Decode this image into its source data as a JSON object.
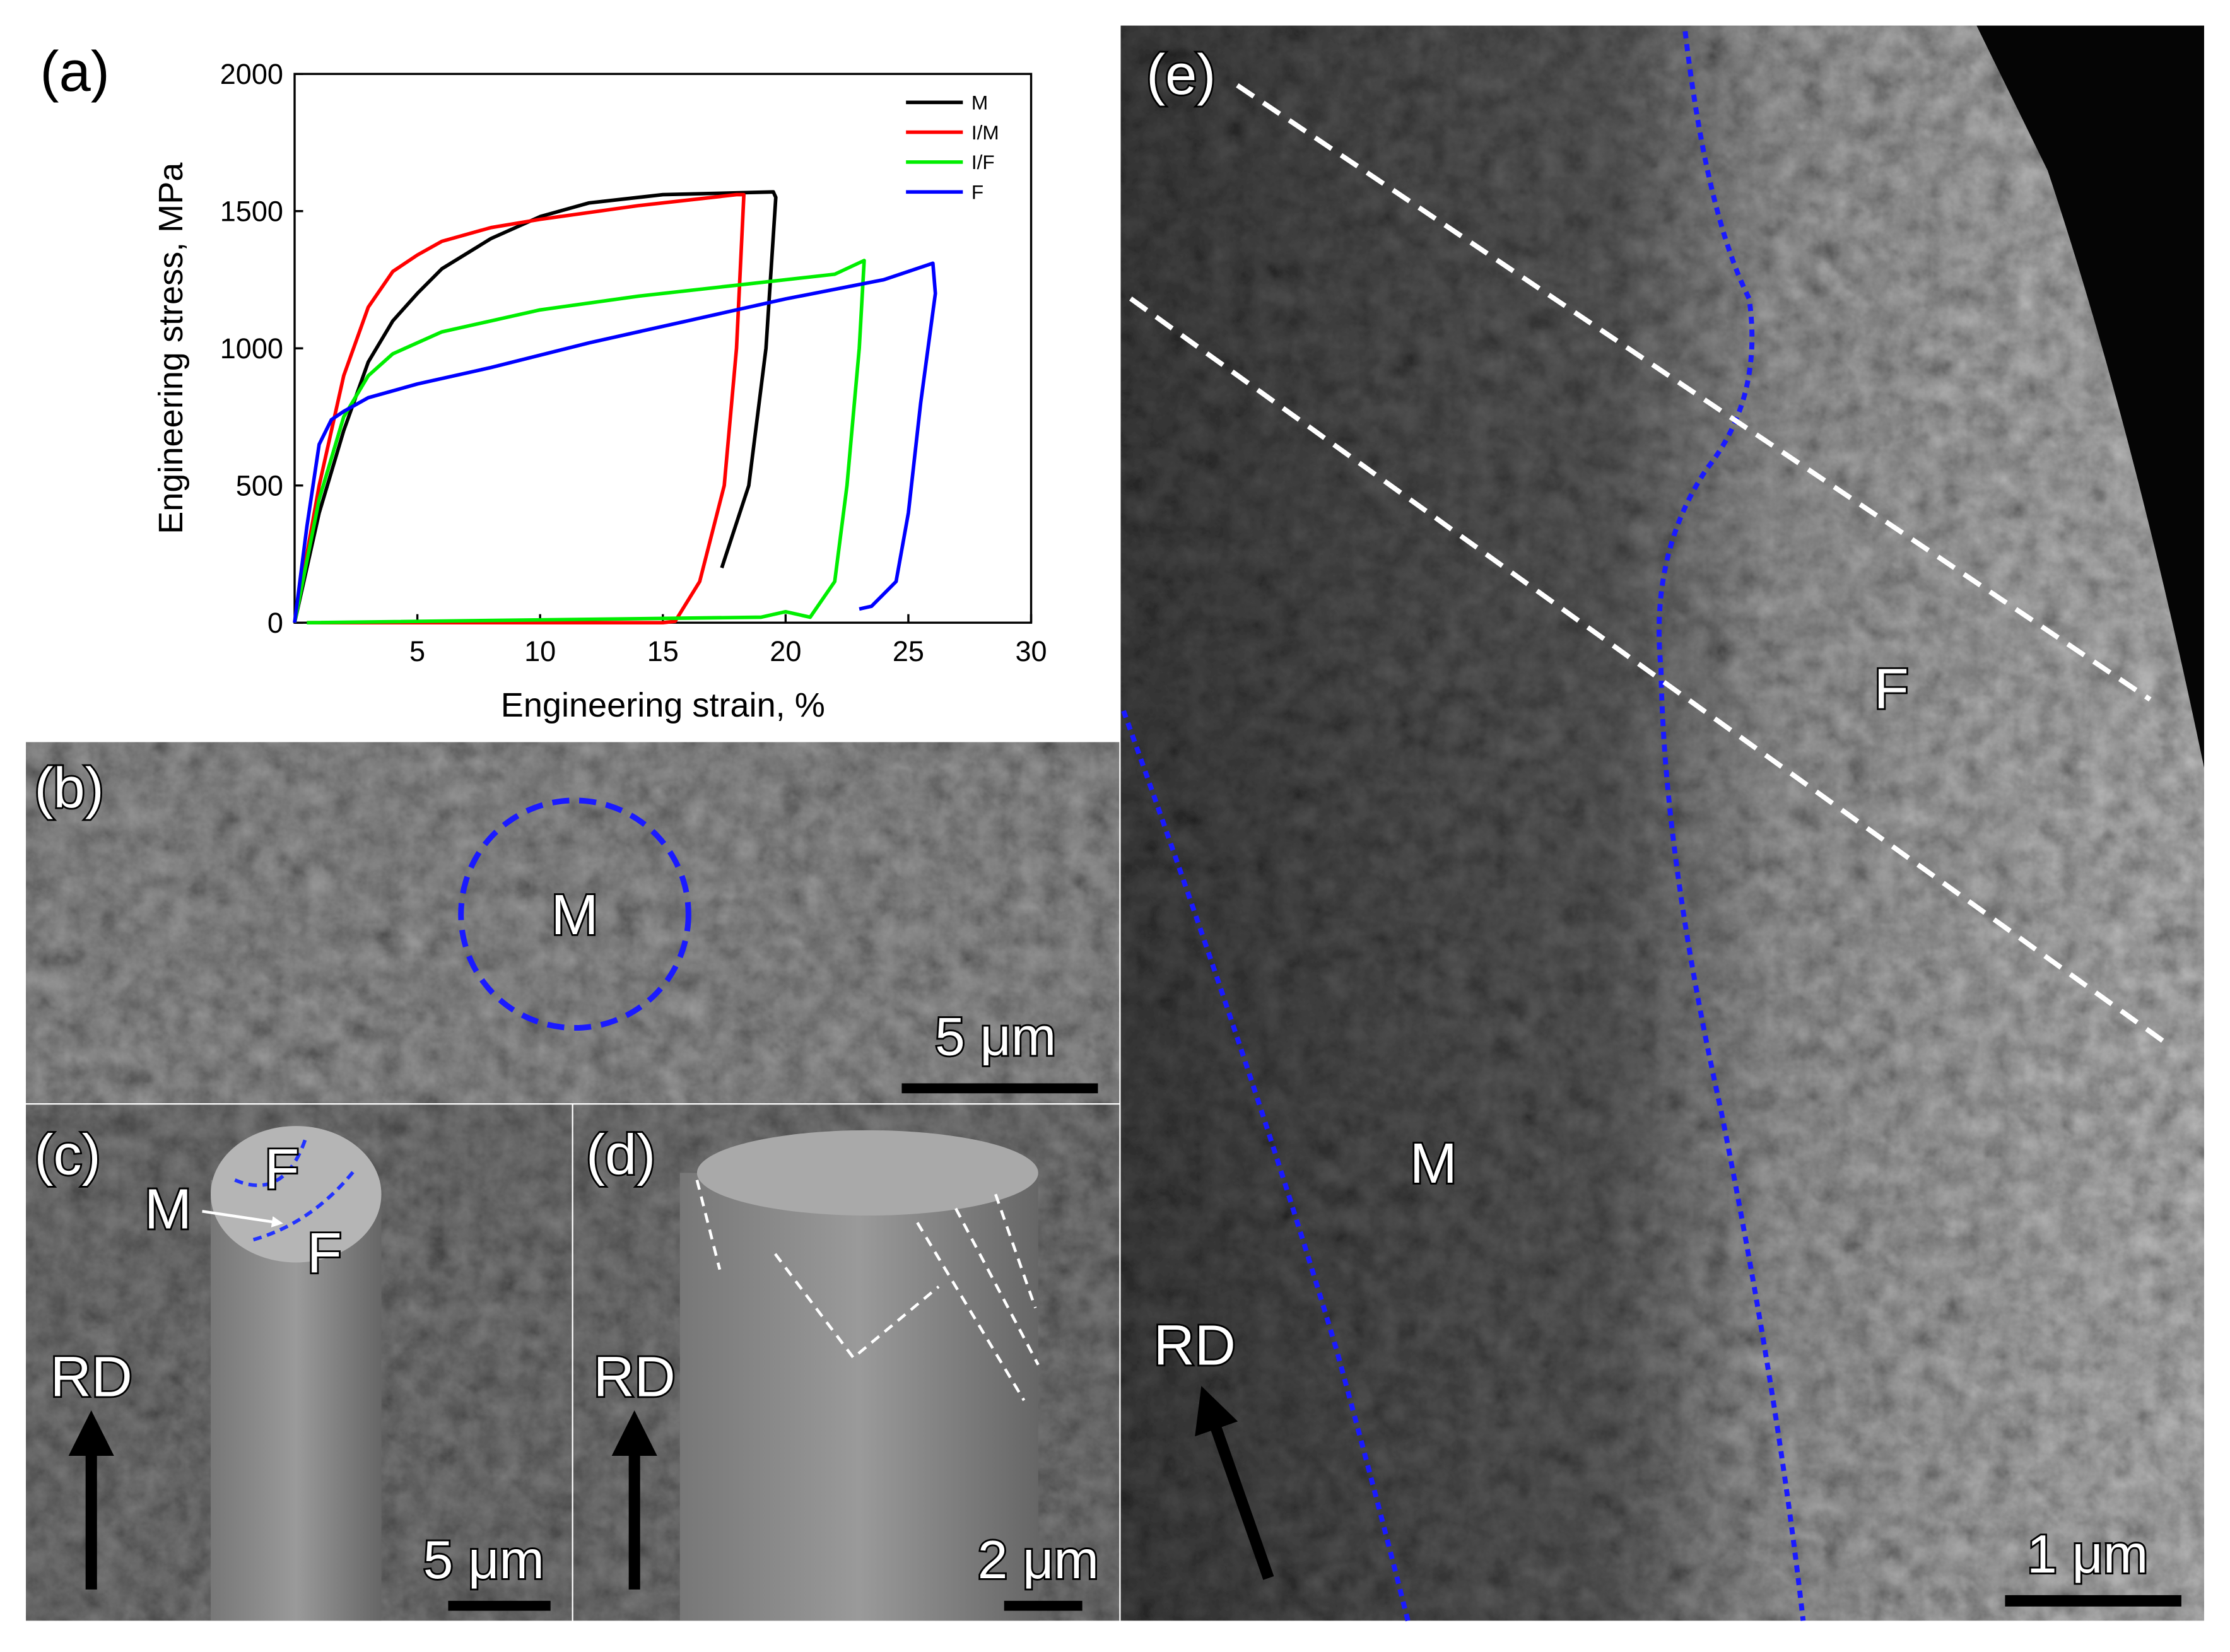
{
  "chart_data": {
    "type": "line",
    "title": "(a)",
    "x_label": "Engineering strain, %",
    "y_label": "Engineering stress, MPa",
    "xlim": [
      0,
      30
    ],
    "xticks": [
      5,
      10,
      15,
      20,
      25,
      30
    ],
    "ylim": [
      0,
      2000
    ],
    "yticks": [
      0,
      500,
      1000,
      1500,
      2000
    ],
    "legend": "upper right",
    "series": [
      {
        "name": "M",
        "color": "#000000",
        "x": [
          0,
          1,
          2,
          3,
          4,
          5,
          6,
          8,
          10,
          12,
          15,
          19.5,
          19.6,
          19.2,
          18.5,
          17.4
        ],
        "values": [
          0,
          400,
          700,
          950,
          1100,
          1200,
          1290,
          1400,
          1480,
          1530,
          1560,
          1570,
          1550,
          1000,
          500,
          200
        ]
      },
      {
        "name": "I/M",
        "color": "#ff0000",
        "x": [
          0,
          1,
          2,
          3,
          4,
          5,
          6,
          8,
          10,
          14,
          18,
          18.3,
          18,
          17.5,
          16.5,
          15.5,
          15,
          0.5
        ],
        "values": [
          0,
          500,
          900,
          1150,
          1280,
          1340,
          1390,
          1440,
          1470,
          1520,
          1560,
          1560,
          1000,
          500,
          150,
          5,
          0,
          0
        ]
      },
      {
        "name": "I/F",
        "color": "#00ee00",
        "x": [
          0,
          1,
          2,
          3,
          4,
          6,
          8,
          10,
          14,
          18,
          22,
          23.2,
          23,
          22.5,
          22,
          21,
          20,
          19,
          0.5
        ],
        "values": [
          0,
          450,
          750,
          900,
          980,
          1060,
          1100,
          1140,
          1190,
          1230,
          1270,
          1320,
          1000,
          500,
          150,
          20,
          40,
          20,
          0
        ]
      },
      {
        "name": "F",
        "color": "#0000ff",
        "x": [
          0,
          0.5,
          1,
          1.5,
          2,
          3,
          5,
          8,
          12,
          16,
          20,
          24,
          26,
          26.1,
          25.5,
          25,
          24.5,
          23.5,
          23
        ],
        "values": [
          0,
          350,
          650,
          740,
          770,
          820,
          870,
          930,
          1020,
          1100,
          1180,
          1250,
          1310,
          1200,
          800,
          400,
          150,
          60,
          50
        ]
      }
    ]
  },
  "panels": {
    "b": {
      "label": "(b)",
      "marker": "M",
      "scale_bar": "5 μm"
    },
    "c": {
      "label": "(c)",
      "marker_top": "F",
      "marker_mid": "M",
      "marker_bottom": "F",
      "direction": "RD",
      "scale_bar": "5 μm"
    },
    "d": {
      "label": "(d)",
      "direction": "RD",
      "scale_bar": "2 μm"
    },
    "e": {
      "label": "(e)",
      "marker_f": "F",
      "marker_m": "M",
      "direction": "RD",
      "scale_bar": "1 μm"
    }
  }
}
